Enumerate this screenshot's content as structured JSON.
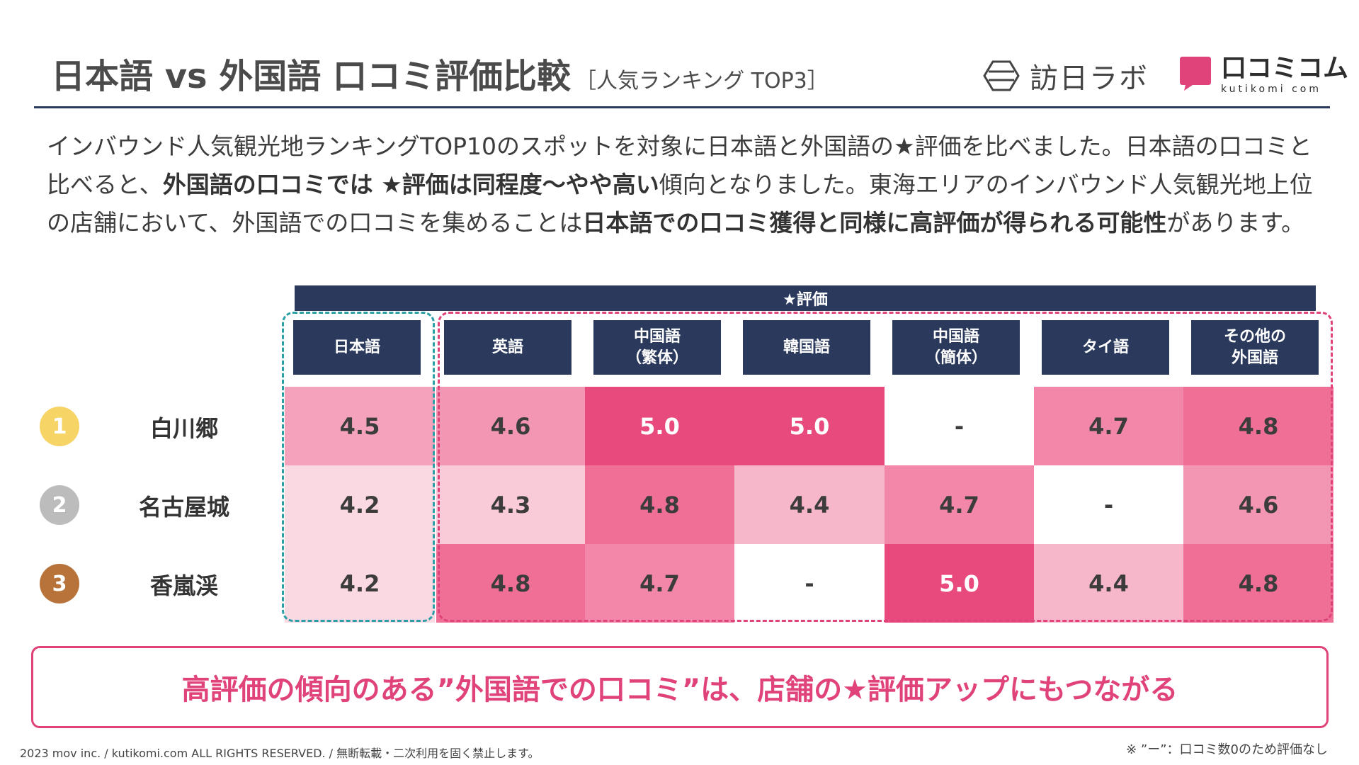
{
  "header": {
    "title": "日本語 vs 外国語 口コミ評価比較",
    "subtitle": "［人気ランキング TOP3］",
    "logo_houjin": "訪日ラボ",
    "logo_kuti_main": "口コミコム",
    "logo_kuti_small": "kutikomi com"
  },
  "intro": {
    "p1": "インバウンド人気観光地ランキングTOP10のスポットを対象に日本語と外国語の★評価を比べました。日本語の口コミと比べると、",
    "b1": "外国語の口コミでは ★評価は同程度〜やや高い",
    "p2": "傾向となりました。東海エリアのインバウンド人気観光地上位の店舗において、外国語での口コミを集めることは",
    "b2": "日本語での口コミ獲得と同様に高評価が得られる可能性",
    "p3": "があります。"
  },
  "table": {
    "star_header": "★評価",
    "columns": [
      "日本語",
      "英語",
      "中国語\n（繁体）",
      "韓国語",
      "中国語\n（簡体）",
      "タイ語",
      "その他の\n外国語"
    ],
    "rows": [
      {
        "rank": "1",
        "name": "白川郷",
        "values": [
          "4.5",
          "4.6",
          "5.0",
          "5.0",
          "-",
          "4.7",
          "4.8"
        ]
      },
      {
        "rank": "2",
        "name": "名古屋城",
        "values": [
          "4.2",
          "4.3",
          "4.8",
          "4.4",
          "4.7",
          "-",
          "4.6"
        ]
      },
      {
        "rank": "3",
        "name": "香嵐渓",
        "values": [
          "4.2",
          "4.8",
          "4.7",
          "-",
          "5.0",
          "4.4",
          "4.8"
        ]
      }
    ],
    "rank_colors": [
      "#f7d466",
      "#bcbcbc",
      "#b8733a"
    ]
  },
  "callout": "高評価の傾向のある”外国語での口コミ”は、店舗の★評価アップにもつながる",
  "footer": {
    "copyright": "2023 mov inc. / kutikomi.com ALL RIGHTS RESERVED. / 無断転載・二次利用を固く禁止します。",
    "note": "※ ”ー”：口コミ数0のため評価なし"
  }
}
